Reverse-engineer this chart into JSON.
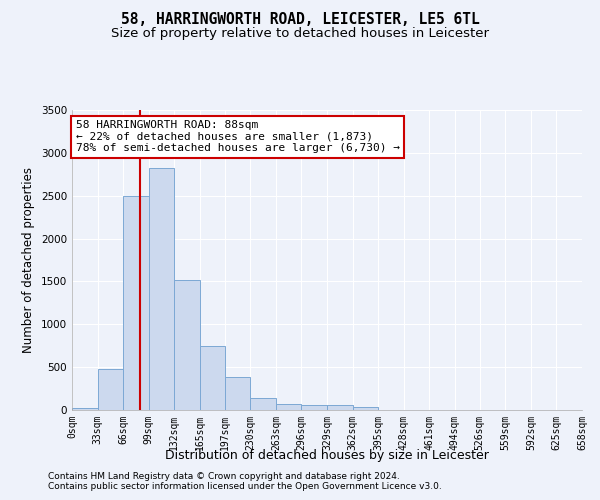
{
  "title": "58, HARRINGWORTH ROAD, LEICESTER, LE5 6TL",
  "subtitle": "Size of property relative to detached houses in Leicester",
  "xlabel": "Distribution of detached houses by size in Leicester",
  "ylabel": "Number of detached properties",
  "bar_color": "#ccd9ee",
  "bar_edge_color": "#7ca8d4",
  "bar_values": [
    20,
    480,
    2500,
    2820,
    1520,
    750,
    390,
    140,
    75,
    55,
    60,
    30,
    5,
    0,
    0,
    0,
    0,
    0,
    0,
    0
  ],
  "bar_bins": [
    0,
    33,
    66,
    99,
    132,
    165,
    197,
    230,
    263,
    296,
    329,
    362,
    395,
    428,
    461,
    494,
    526,
    559,
    592,
    625,
    658
  ],
  "tick_labels": [
    "0sqm",
    "33sqm",
    "66sqm",
    "99sqm",
    "132sqm",
    "165sqm",
    "197sqm",
    "230sqm",
    "263sqm",
    "296sqm",
    "329sqm",
    "362sqm",
    "395sqm",
    "428sqm",
    "461sqm",
    "494sqm",
    "526sqm",
    "559sqm",
    "592sqm",
    "625sqm",
    "658sqm"
  ],
  "ylim": [
    0,
    3500
  ],
  "yticks": [
    0,
    500,
    1000,
    1500,
    2000,
    2500,
    3000,
    3500
  ],
  "vline_x": 88,
  "vline_color": "#cc0000",
  "annotation_text": "58 HARRINGWORTH ROAD: 88sqm\n← 22% of detached houses are smaller (1,873)\n78% of semi-detached houses are larger (6,730) →",
  "annotation_box_color": "#ffffff",
  "annotation_box_edge": "#cc0000",
  "footer_line1": "Contains HM Land Registry data © Crown copyright and database right 2024.",
  "footer_line2": "Contains public sector information licensed under the Open Government Licence v3.0.",
  "background_color": "#eef2fa",
  "grid_color": "#ffffff",
  "title_fontsize": 10.5,
  "subtitle_fontsize": 9.5,
  "axis_label_fontsize": 8.5,
  "tick_fontsize": 7,
  "annotation_fontsize": 8,
  "footer_fontsize": 6.5
}
